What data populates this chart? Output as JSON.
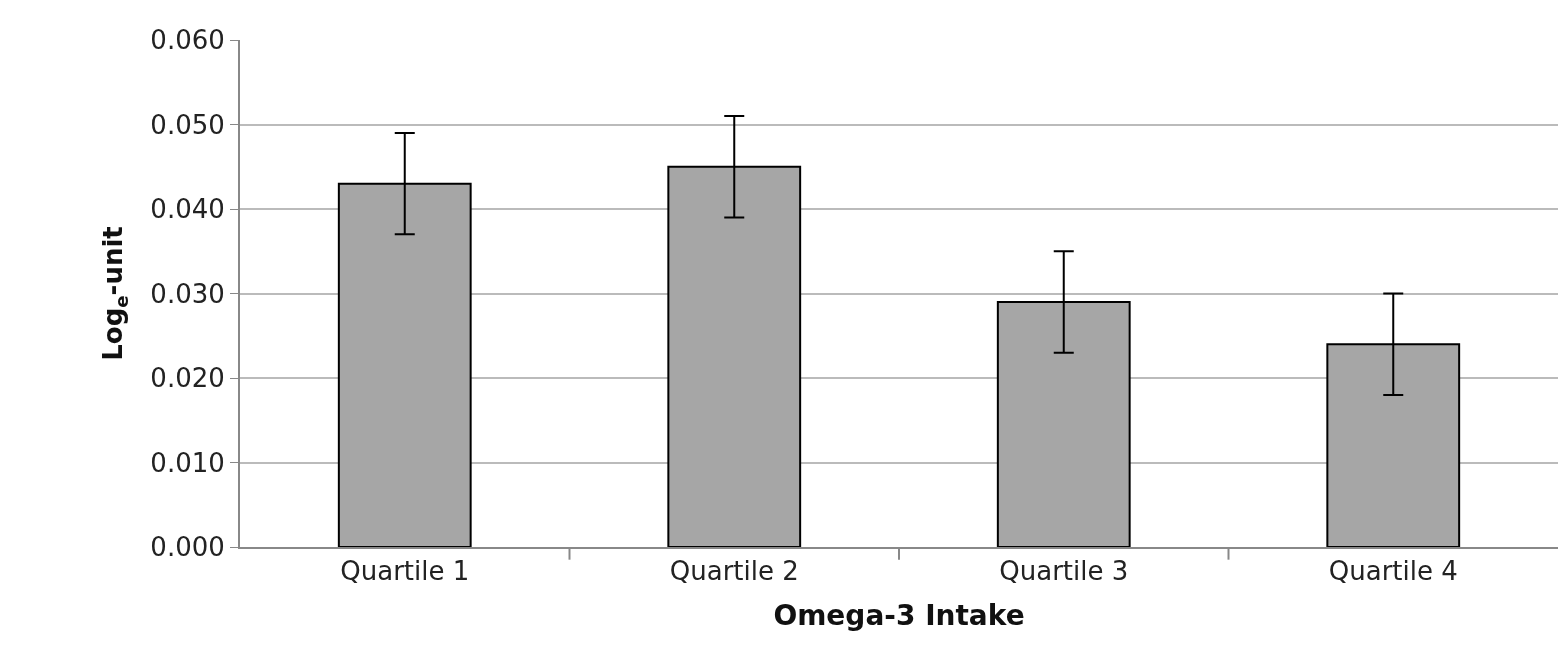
{
  "chart_data": {
    "type": "bar",
    "xlabel": "Omega-3 Intake",
    "ylabel": "Log$_{e}$-unit",
    "categories": [
      "Quartile 1",
      "Quartile 2",
      "Quartile 3",
      "Quartile 4"
    ],
    "values": [
      0.043,
      0.045,
      0.029,
      0.024
    ],
    "errors": [
      0.006,
      0.006,
      0.006,
      0.006
    ],
    "color": "#a6a6a6",
    "ylim": [
      0,
      0.06
    ],
    "yticks": [
      {
        "value": 0,
        "label": "0.000"
      },
      {
        "value": 0.01,
        "label": "0.010"
      },
      {
        "value": 0.02,
        "label": "0.020"
      },
      {
        "value": 0.03,
        "label": "0.030"
      },
      {
        "value": 0.04,
        "label": "0.040"
      },
      {
        "value": 0.05,
        "label": "0.050"
      },
      {
        "value": 0.06,
        "label": "0.060"
      }
    ],
    "grid": "y"
  }
}
